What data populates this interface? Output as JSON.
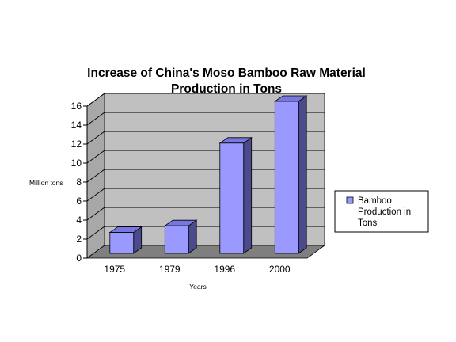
{
  "chart_data": {
    "type": "bar",
    "title_lines": [
      "Increase of China's Moso Bamboo Raw Material",
      "Production in Tons"
    ],
    "categories": [
      "1975",
      "1979",
      "1996",
      "2000"
    ],
    "series": [
      {
        "name_lines": [
          "Bamboo",
          "Production in",
          "Tons"
        ],
        "values": [
          2.2,
          2.9,
          11.6,
          16.0
        ]
      }
    ],
    "xlabel": "Years",
    "ylabel": "Million tons",
    "ylim": [
      0,
      16
    ],
    "yticks": [
      0,
      2,
      4,
      6,
      8,
      10,
      12,
      14,
      16
    ],
    "grid": true,
    "legend_position": "right",
    "style": "3d",
    "colors": {
      "bar_front": "#9999ff",
      "bar_top": "#7777dd",
      "bar_side": "#4a4a8c",
      "wall": "#c0c0c0",
      "wall_left": "#a8a8a8",
      "floor": "#7f7f7f"
    }
  }
}
